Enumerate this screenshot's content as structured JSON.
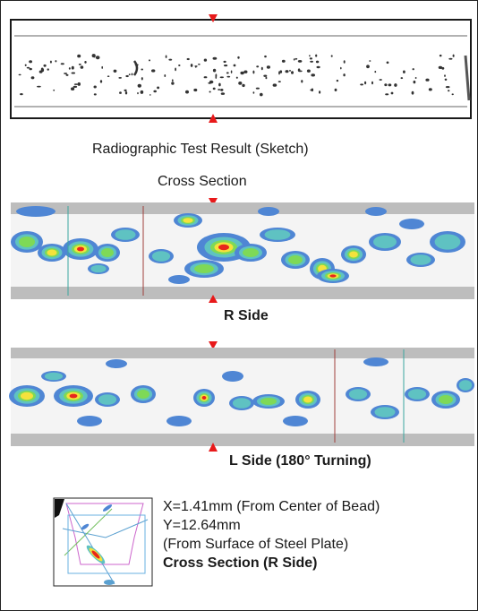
{
  "sketch": {
    "caption": "Radiographic Test Result (Sketch)",
    "colors": {
      "border": "#1a1a1a",
      "film": "#ffffff",
      "marks": "#333333"
    }
  },
  "cross_section_label": "Cross Section",
  "r_side": {
    "caption": "R Side"
  },
  "l_side": {
    "caption": "L Side (180°  Turning)"
  },
  "scan_colors": {
    "band": "#bdbdbd",
    "low": "#4f86d4",
    "mid": "#5fc2c2",
    "green": "#7ed957",
    "yellow": "#f4e23c",
    "high": "#e8261c",
    "gate_red": "#a0403c",
    "gate_teal": "#3aa6a0"
  },
  "marker": {
    "color": "#e8191a",
    "icon": "red-triangle-icon"
  },
  "inset": {
    "x_line": "X=1.41mm  (From Center of Bead)",
    "y_line": "Y=12.64mm",
    "y_note": "(From Surface of Steel Plate)",
    "title": "Cross Section (R Side)"
  }
}
